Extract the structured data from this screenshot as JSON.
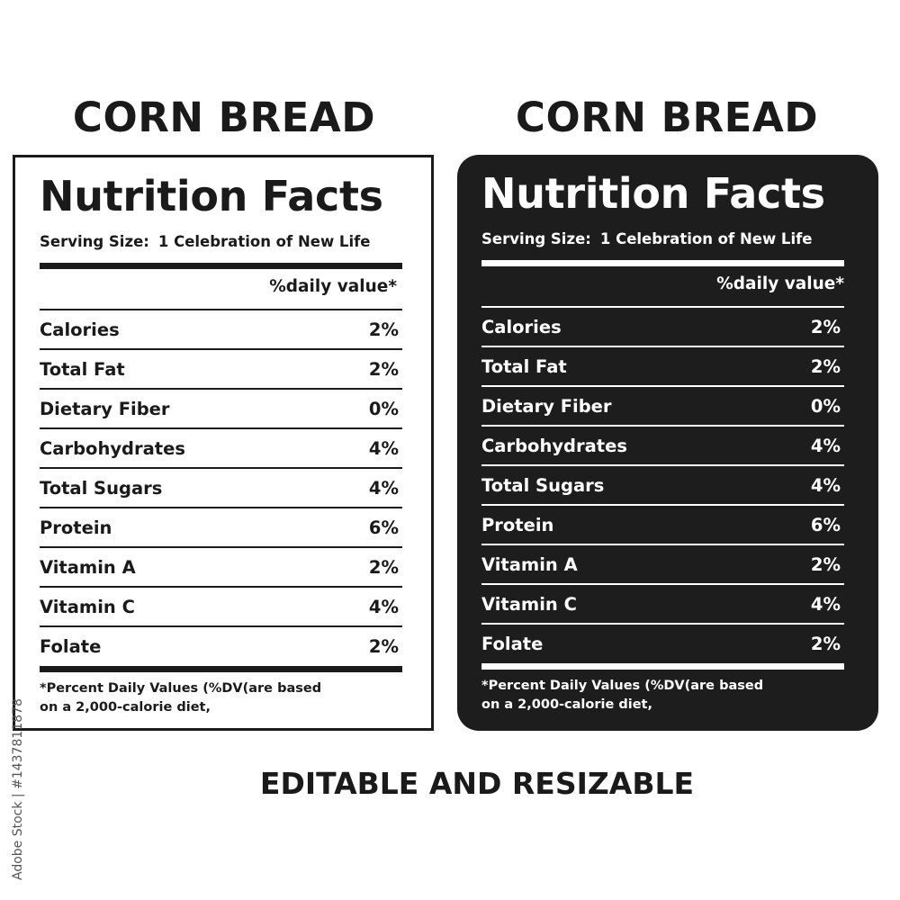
{
  "heading": "CORN BREAD",
  "label": {
    "title": "Nutrition Facts",
    "serving_label": "Serving Size:",
    "serving_value": "1 Celebration of New Life",
    "dv_header": "%daily value*",
    "rows": [
      {
        "name": "Calories",
        "value": "2%"
      },
      {
        "name": "Total Fat",
        "value": "2%"
      },
      {
        "name": "Dietary Fiber",
        "value": "0%"
      },
      {
        "name": "Carbohydrates",
        "value": "4%"
      },
      {
        "name": "Total Sugars",
        "value": "4%"
      },
      {
        "name": "Protein",
        "value": "6%"
      },
      {
        "name": "Vitamin A",
        "value": "2%"
      },
      {
        "name": "Vitamin C",
        "value": "4%"
      },
      {
        "name": "Folate",
        "value": "2%"
      }
    ],
    "footnote_line1": "*Percent Daily Values (%DV(are  based",
    "footnote_line2": "on a 2,000-calorie diet,"
  },
  "caption": "EDITABLE AND RESIZABLE",
  "stock_id": "Adobe Stock | #1437811878",
  "colors": {
    "ink": "#1a1a1a",
    "dark_label_bg": "#1d1d1d",
    "background": "#ffffff"
  }
}
